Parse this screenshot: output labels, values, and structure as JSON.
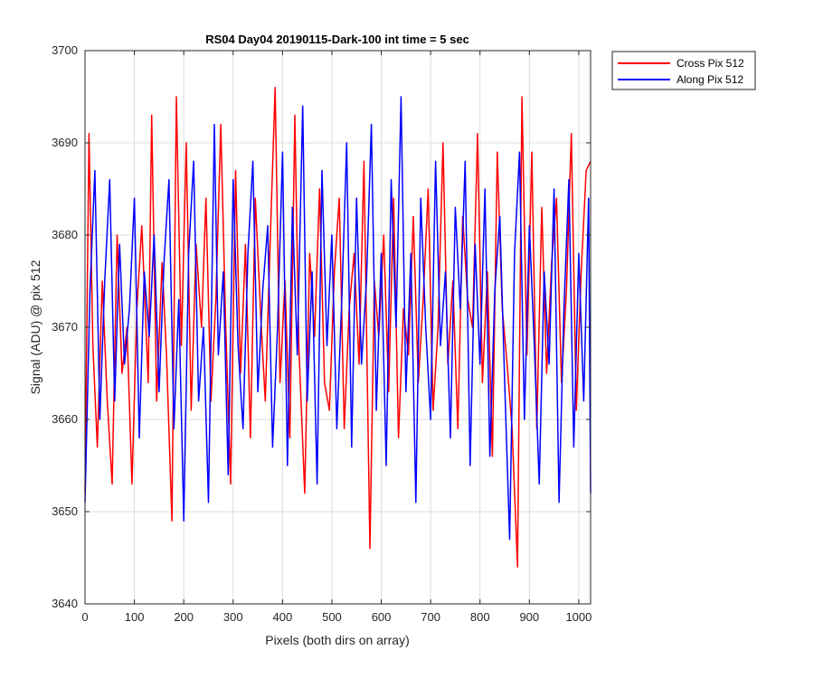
{
  "chart_data": {
    "type": "line",
    "title": "RS04 Day04 20190115-Dark-100 int time = 5 sec",
    "xlabel": "Pixels (both dirs on array)",
    "ylabel": "Signal (ADU) @ pix 512",
    "xlim": [
      0,
      1024
    ],
    "ylim": [
      3640,
      3700
    ],
    "xticks": [
      0,
      100,
      200,
      300,
      400,
      500,
      600,
      700,
      800,
      900,
      1000
    ],
    "yticks": [
      3640,
      3650,
      3660,
      3670,
      3680,
      3690,
      3700
    ],
    "grid": true,
    "legend_position": "outside top-right",
    "series": [
      {
        "name": "Cross Pix 512",
        "color": "#ff0000",
        "x": [
          0,
          8,
          16,
          25,
          35,
          45,
          55,
          65,
          75,
          85,
          95,
          105,
          115,
          128,
          135,
          145,
          156,
          165,
          176,
          185,
          195,
          205,
          215,
          225,
          236,
          245,
          255,
          265,
          275,
          285,
          295,
          305,
          315,
          325,
          335,
          345,
          357,
          365,
          376,
          385,
          395,
          405,
          415,
          425,
          433,
          445,
          455,
          465,
          475,
          485,
          495,
          505,
          515,
          525,
          535,
          545,
          555,
          565,
          577,
          586,
          595,
          605,
          615,
          625,
          635,
          645,
          655,
          665,
          675,
          685,
          695,
          705,
          715,
          725,
          735,
          745,
          755,
          765,
          775,
          785,
          795,
          805,
          815,
          825,
          835,
          845,
          855,
          865,
          876,
          885,
          895,
          905,
          915,
          925,
          935,
          945,
          955,
          965,
          975,
          985,
          995,
          1005,
          1015,
          1024
        ],
        "values": [
          3652,
          3691,
          3668,
          3657,
          3675,
          3662,
          3653,
          3680,
          3665,
          3670,
          3653,
          3672,
          3681,
          3664,
          3693,
          3662,
          3677,
          3667,
          3649,
          3695,
          3668,
          3690,
          3661,
          3679,
          3670,
          3684,
          3662,
          3673,
          3692,
          3670,
          3653,
          3687,
          3665,
          3679,
          3658,
          3684,
          3670,
          3662,
          3681,
          3696,
          3664,
          3675,
          3658,
          3693,
          3668,
          3652,
          3678,
          3669,
          3685,
          3664,
          3661,
          3676,
          3684,
          3659,
          3672,
          3678,
          3666,
          3688,
          3646,
          3675,
          3669,
          3680,
          3663,
          3684,
          3658,
          3672,
          3667,
          3682,
          3664,
          3673,
          3685,
          3661,
          3670,
          3690,
          3666,
          3675,
          3659,
          3682,
          3673,
          3670,
          3691,
          3664,
          3676,
          3656,
          3689,
          3672,
          3666,
          3659,
          3644,
          3695,
          3667,
          3689,
          3659,
          3683,
          3665,
          3677,
          3684,
          3664,
          3674,
          3691,
          3661,
          3676,
          3687,
          3688
        ]
      },
      {
        "name": "Along Pix 512",
        "color": "#0000ff",
        "x": [
          0,
          10,
          20,
          30,
          40,
          50,
          60,
          70,
          80,
          90,
          100,
          110,
          120,
          130,
          140,
          150,
          160,
          170,
          180,
          190,
          200,
          210,
          220,
          230,
          240,
          250,
          262,
          270,
          280,
          290,
          300,
          310,
          320,
          330,
          340,
          350,
          360,
          370,
          380,
          390,
          400,
          410,
          420,
          430,
          441,
          450,
          460,
          470,
          480,
          490,
          500,
          510,
          520,
          530,
          540,
          550,
          560,
          570,
          580,
          590,
          600,
          610,
          620,
          630,
          640,
          650,
          660,
          670,
          680,
          690,
          700,
          710,
          720,
          730,
          740,
          750,
          760,
          770,
          780,
          790,
          800,
          810,
          820,
          830,
          840,
          850,
          860,
          870,
          880,
          890,
          900,
          910,
          920,
          930,
          940,
          950,
          960,
          970,
          980,
          990,
          1000,
          1010,
          1020,
          1024
        ],
        "values": [
          3651,
          3674,
          3687,
          3660,
          3675,
          3686,
          3662,
          3679,
          3666,
          3672,
          3684,
          3658,
          3676,
          3669,
          3680,
          3663,
          3677,
          3686,
          3659,
          3673,
          3649,
          3678,
          3688,
          3662,
          3670,
          3651,
          3692,
          3667,
          3676,
          3654,
          3686,
          3668,
          3659,
          3678,
          3688,
          3663,
          3674,
          3681,
          3657,
          3670,
          3689,
          3655,
          3683,
          3667,
          3694,
          3662,
          3676,
          3653,
          3687,
          3668,
          3680,
          3659,
          3673,
          3690,
          3657,
          3684,
          3666,
          3675,
          3692,
          3661,
          3678,
          3655,
          3686,
          3670,
          3695,
          3663,
          3678,
          3651,
          3684,
          3670,
          3660,
          3688,
          3668,
          3676,
          3658,
          3683,
          3672,
          3688,
          3655,
          3679,
          3666,
          3685,
          3656,
          3674,
          3682,
          3664,
          3647,
          3678,
          3689,
          3660,
          3681,
          3668,
          3653,
          3676,
          3666,
          3685,
          3651,
          3672,
          3686,
          3657,
          3678,
          3662,
          3684,
          3652
        ]
      }
    ]
  }
}
